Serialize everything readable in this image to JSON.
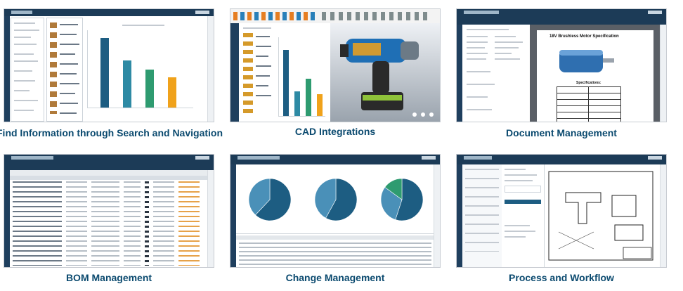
{
  "captions": {
    "search": "Find Information through Search and Navigation",
    "cad": "CAD Integrations",
    "document": "Document Management",
    "bom": "BOM Management",
    "change": "Change Management",
    "workflow": "Process and Workflow"
  },
  "colors": {
    "caption": "#0b4a6f",
    "app_header": "#1c3b57",
    "bar_series": [
      "#1d5d82",
      "#2e8aa4",
      "#2e9b70",
      "#f0a21b"
    ]
  },
  "document_preview": {
    "heading": "18V Brushless Motor Specification",
    "specs_label": "Specifications:"
  },
  "search_chart_levels": [
    0.92,
    0.62,
    0.5,
    0.4
  ],
  "cad_chart_levels": [
    0.85,
    0.32,
    0.48,
    0.28
  ],
  "change_pie_shares": [
    [
      0.62,
      0.38
    ],
    [
      0.58,
      0.42
    ],
    [
      0.55,
      0.3,
      0.15
    ]
  ]
}
